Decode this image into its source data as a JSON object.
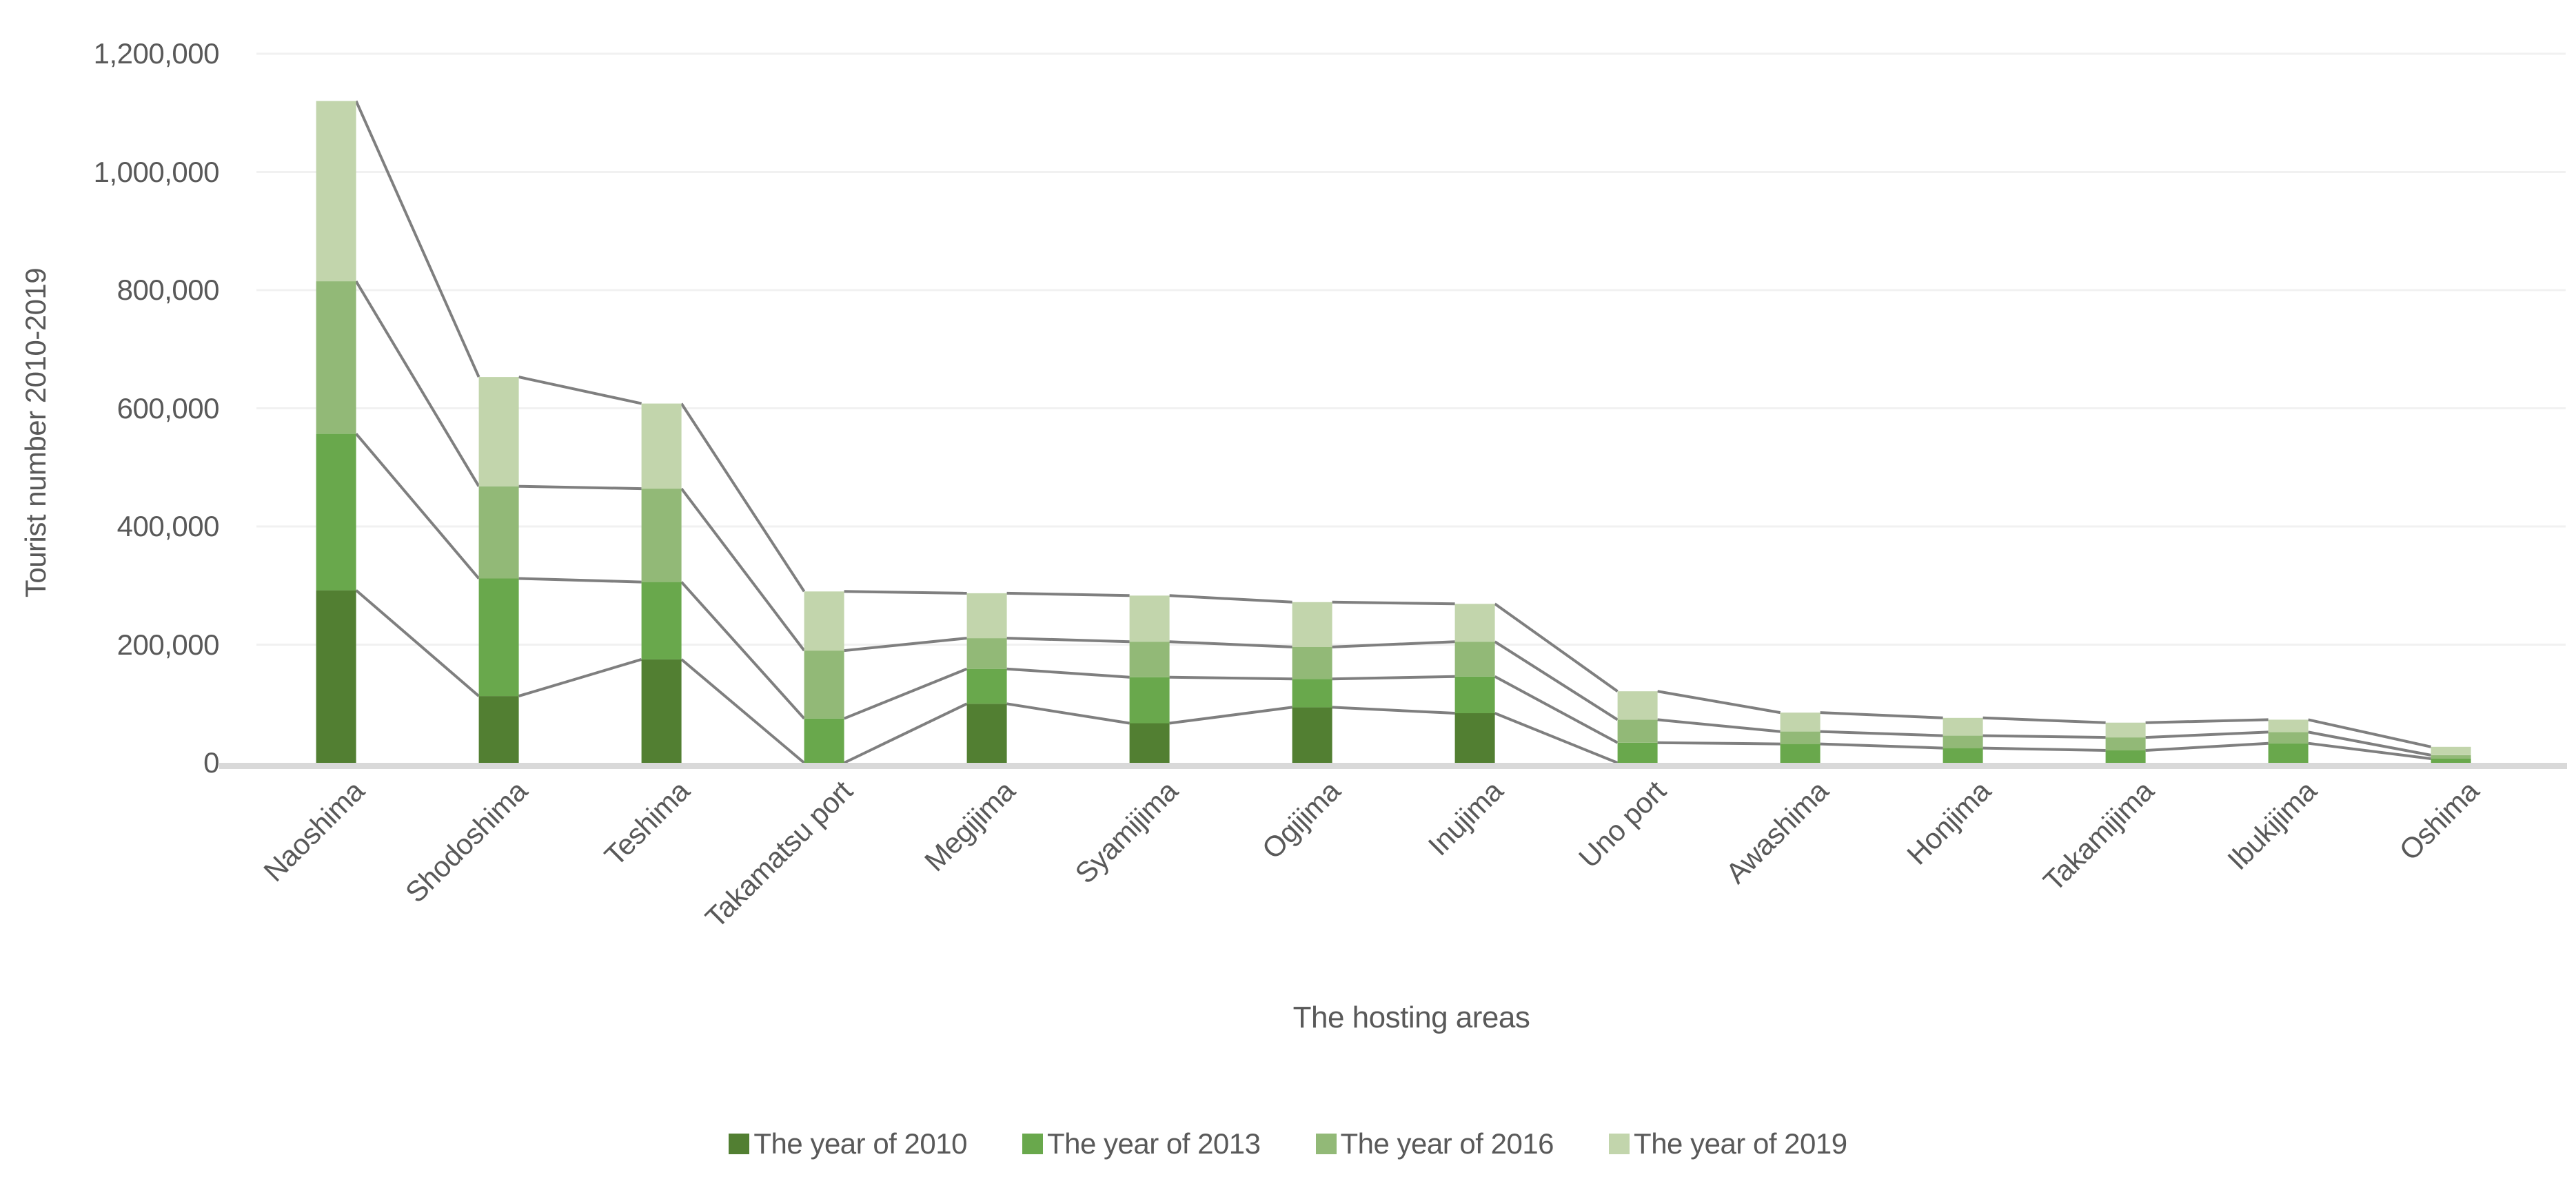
{
  "chart_data": {
    "type": "bar",
    "variant": "stacked-column-with-series-lines",
    "title": "",
    "xlabel": "The hosting areas",
    "ylabel": "Tourist number 2010-2019",
    "ylim": [
      0,
      1200000
    ],
    "y_tick_step": 200000,
    "y_ticks": [
      "0",
      "200,000",
      "400,000",
      "600,000",
      "800,000",
      "1,000,000",
      "1,200,000"
    ],
    "grid": true,
    "legend_position": "bottom",
    "categories": [
      "Naoshima",
      "Shodoshima",
      "Teshima",
      "Takamatsu port",
      "Megijima",
      "Syamijima",
      "Ogijima",
      "Inujima",
      "Uno port",
      "Awashima",
      "Honjima",
      "Takamijima",
      "Ibukijima",
      "Oshima"
    ],
    "series": [
      {
        "name": "The year of 2010",
        "color": "#527F32",
        "values": [
          292000,
          113000,
          175000,
          0,
          100000,
          67000,
          94000,
          84000,
          0,
          0,
          0,
          0,
          0,
          0
        ]
      },
      {
        "name": "The year of 2013",
        "color": "#69A84C",
        "values": [
          265000,
          199000,
          131000,
          75000,
          59000,
          78000,
          48000,
          62000,
          34000,
          32000,
          25000,
          21000,
          33000,
          7000
        ]
      },
      {
        "name": "The year of 2016",
        "color": "#92B977",
        "values": [
          258000,
          156000,
          158000,
          115000,
          52000,
          60000,
          54000,
          59000,
          39000,
          21000,
          21000,
          22000,
          19000,
          6000
        ]
      },
      {
        "name": "The year of 2019",
        "color": "#C2D5AC",
        "values": [
          305000,
          185000,
          144000,
          100000,
          76000,
          78000,
          76000,
          64000,
          48000,
          32000,
          30000,
          25000,
          21000,
          14000
        ]
      }
    ],
    "colors": {
      "gridline": "#F1F1F1",
      "axis_line": "#D9D9D9",
      "series_connector_line": "#7F7F7F",
      "text": "#595959",
      "background": "#FFFFFF"
    }
  }
}
